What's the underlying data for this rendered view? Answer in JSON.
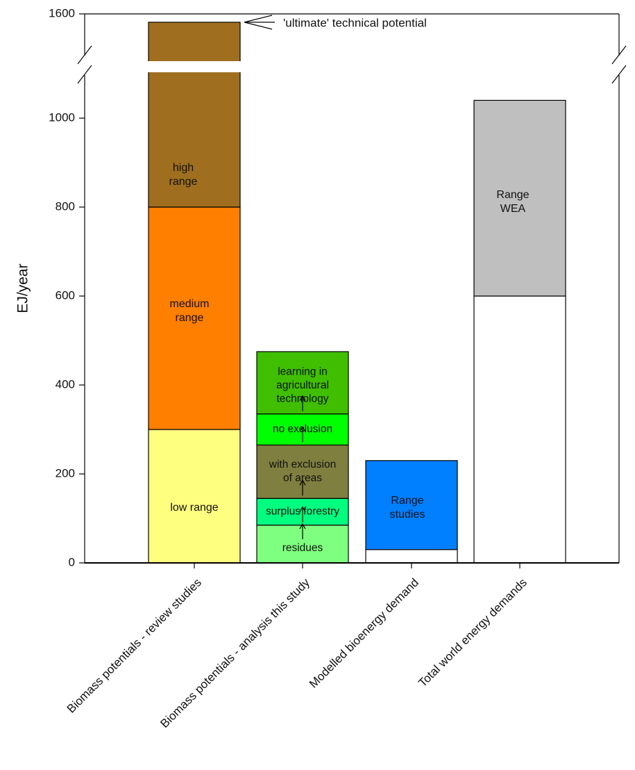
{
  "chart_data": {
    "type": "bar",
    "subtype": "stacked",
    "ylabel": "EJ/year",
    "y_ticks": [
      "0",
      "200",
      "400",
      "600",
      "800",
      "1000",
      "1600"
    ],
    "ylim": [
      0,
      1600
    ],
    "axis_break": {
      "from": 1100,
      "to": 1550
    },
    "categories": [
      "Biomass potentials - review studies",
      "Biomass potentials - analysis this study",
      "Modelled bioenergy demand",
      "Total world energy demands"
    ],
    "bars": [
      {
        "category": "Biomass potentials - review studies",
        "segments": [
          {
            "label": "low range",
            "from": 0,
            "to": 300,
            "color": "#ffff7f"
          },
          {
            "label": "medium range",
            "from": 300,
            "to": 800,
            "color": "#ff7f00"
          },
          {
            "label": "high range",
            "from": 800,
            "to": 1570,
            "color": "#9f6f1f"
          }
        ]
      },
      {
        "category": "Biomass potentials - analysis this study",
        "segments": [
          {
            "label": "residues",
            "from": 0,
            "to": 85,
            "color": "#7fff7f"
          },
          {
            "label": "surplus forestry",
            "from": 85,
            "to": 145,
            "color": "#00ff7f"
          },
          {
            "label": "with exclusion of areas",
            "from": 145,
            "to": 265,
            "color": "#7f7f3f"
          },
          {
            "label": "no exclusion",
            "from": 265,
            "to": 335,
            "color": "#00ff00"
          },
          {
            "label": "learning in agricultural technology",
            "from": 335,
            "to": 475,
            "color": "#3fbf00"
          }
        ]
      },
      {
        "category": "Modelled bioenergy demand",
        "segments": [
          {
            "label": "",
            "from": 0,
            "to": 30,
            "color": "#ffffff"
          },
          {
            "label": "Range studies",
            "from": 30,
            "to": 230,
            "color": "#007fff"
          }
        ]
      },
      {
        "category": "Total world energy demands",
        "segments": [
          {
            "label": "",
            "from": 0,
            "to": 600,
            "color": "#ffffff"
          },
          {
            "label": "Range WEA",
            "from": 600,
            "to": 1040,
            "color": "#bfbfbf"
          }
        ]
      }
    ],
    "segment_text_lines": {
      "high range": [
        "high",
        "range"
      ],
      "medium range": [
        "medium",
        "range"
      ],
      "low range": [
        "low range"
      ],
      "learning in agricultural technology": [
        "learning in",
        "agricultural",
        "technology"
      ],
      "no exclusion": [
        "no exclusion"
      ],
      "with exclusion of areas": [
        "with exclusion",
        "of areas"
      ],
      "surplus forestry": [
        "surplus forestry"
      ],
      "residues": [
        "residues"
      ],
      "Range studies": [
        "Range",
        "studies"
      ],
      "Range WEA": [
        "Range",
        "WEA"
      ]
    },
    "annotations": [
      {
        "text": "'ultimate' technical potential",
        "points_to": 1570,
        "category": "Biomass potentials - review studies"
      }
    ],
    "grid": false,
    "legend": "none"
  }
}
